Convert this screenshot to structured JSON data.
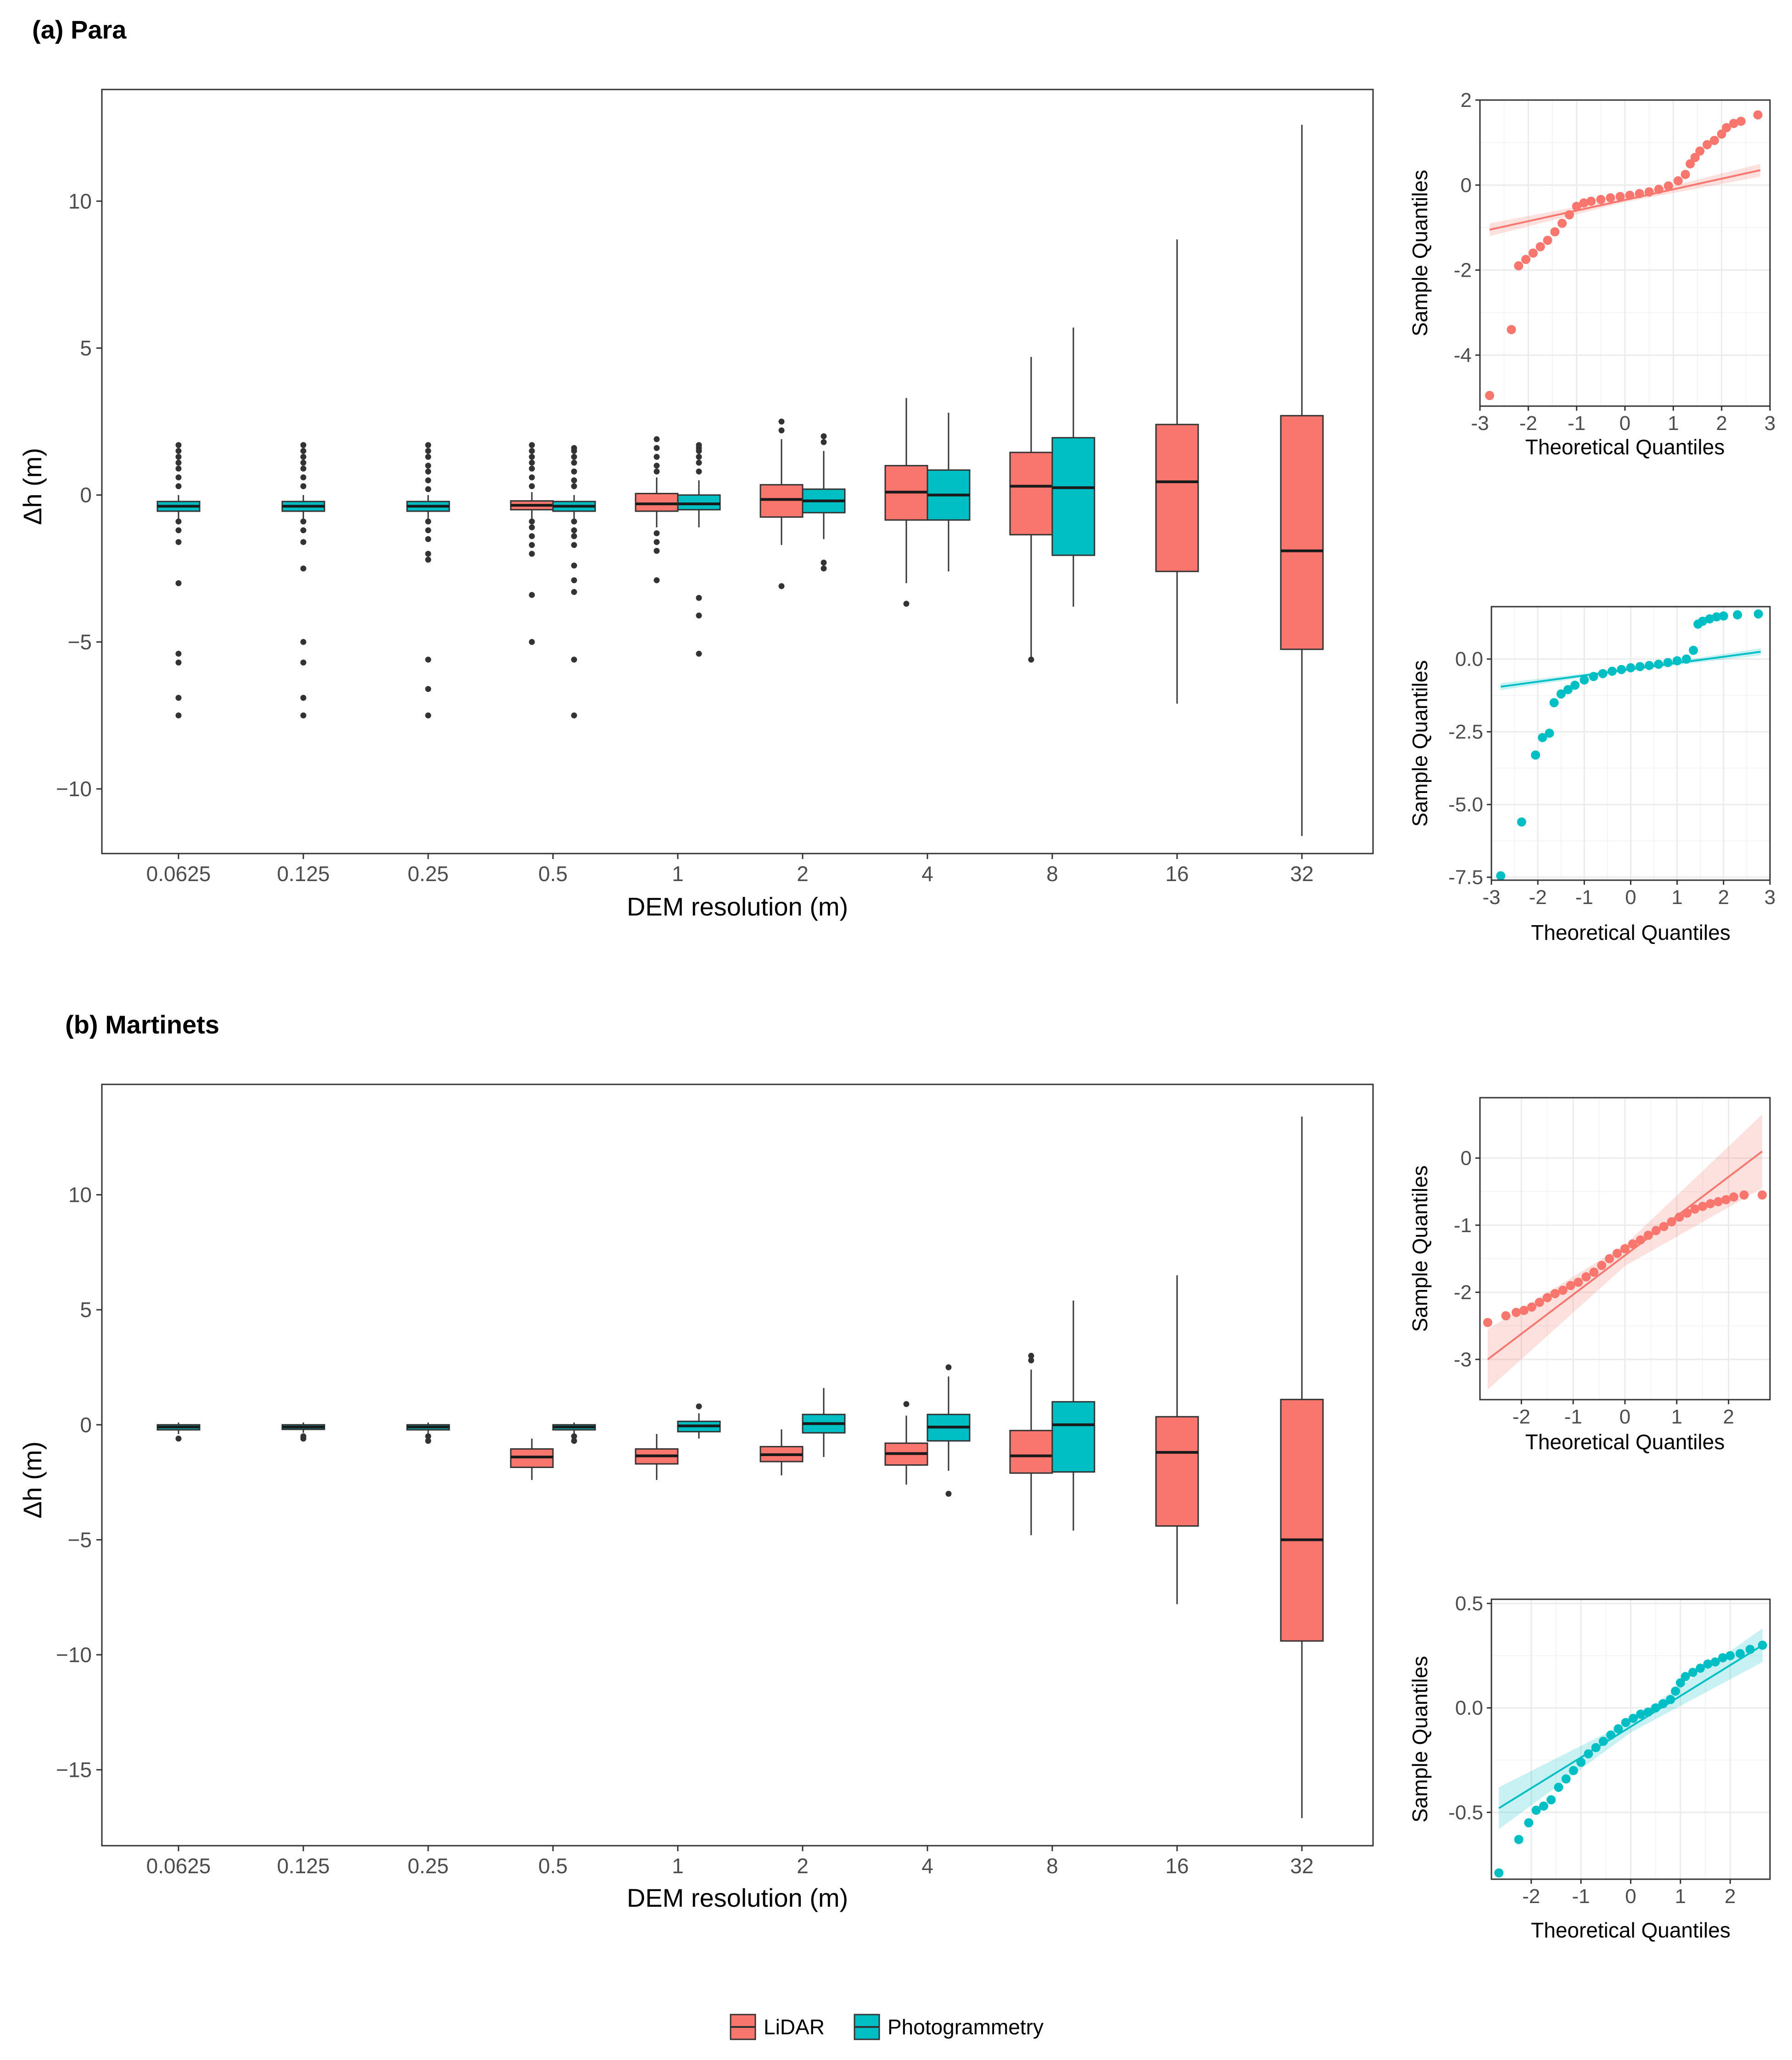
{
  "colors": {
    "lidar": "#F8766D",
    "photogrammetry": "#00BFC4",
    "outlier": "#333333",
    "frame": "#333333",
    "grid": "#ebebeb",
    "grid_minor": "#f4f4f4"
  },
  "legend": {
    "items": [
      {
        "label": "LiDAR",
        "color": "#F8766D"
      },
      {
        "label": "Photogrammetry",
        "color": "#00BFC4"
      }
    ]
  },
  "chart_data": [
    {
      "type": "box",
      "id": "a",
      "title": "(a)  Para",
      "xlabel": "DEM resolution (m)",
      "ylabel": "Δh (m)",
      "ylim": [
        -12.2,
        13.8
      ],
      "yticks": [
        -10,
        -5,
        0,
        5,
        10
      ],
      "yticklabels": [
        "−10",
        "−5",
        "0",
        "5",
        "10"
      ],
      "categories": [
        "0.0625",
        "0.125",
        "0.25",
        "0.5",
        "1",
        "2",
        "4",
        "8",
        "16",
        "32"
      ],
      "series": [
        {
          "name": "LiDAR",
          "boxes": [
            null,
            null,
            null,
            {
              "category": "0.5",
              "q1": -0.5,
              "median": -0.35,
              "q3": -0.2,
              "whisker_low": -0.8,
              "whisker_high": 0.1,
              "outliers": [
                1.7,
                1.5,
                1.3,
                1.1,
                0.9,
                0.6,
                0.3,
                -0.9,
                -1.1,
                -1.4,
                -1.7,
                -2.0,
                -3.4,
                -5.0
              ]
            },
            {
              "category": "1",
              "q1": -0.55,
              "median": -0.3,
              "q3": 0.05,
              "whisker_low": -1.1,
              "whisker_high": 0.6,
              "outliers": [
                1.9,
                1.6,
                1.3,
                1.0,
                0.8,
                -1.3,
                -1.6,
                -1.9,
                -2.9
              ]
            },
            {
              "category": "2",
              "q1": -0.75,
              "median": -0.15,
              "q3": 0.35,
              "whisker_low": -1.7,
              "whisker_high": 1.9,
              "outliers": [
                2.5,
                2.2,
                -3.1
              ]
            },
            {
              "category": "4",
              "q1": -0.85,
              "median": 0.1,
              "q3": 1.0,
              "whisker_low": -3.0,
              "whisker_high": 3.3,
              "outliers": [
                -3.7
              ]
            },
            {
              "category": "8",
              "q1": -1.35,
              "median": 0.3,
              "q3": 1.45,
              "whisker_low": -5.5,
              "whisker_high": 4.7,
              "outliers": [
                -5.6
              ]
            },
            {
              "category": "16",
              "q1": -2.6,
              "median": 0.45,
              "q3": 2.4,
              "whisker_low": -7.1,
              "whisker_high": 8.7,
              "outliers": []
            },
            {
              "category": "32",
              "q1": -5.25,
              "median": -1.9,
              "q3": 2.7,
              "whisker_low": -11.6,
              "whisker_high": 12.6,
              "outliers": []
            }
          ]
        },
        {
          "name": "Photogrammetry",
          "boxes": [
            {
              "category": "0.0625",
              "q1": -0.55,
              "median": -0.38,
              "q3": -0.22,
              "whisker_low": -0.8,
              "whisker_high": 0.0,
              "outliers": [
                1.7,
                1.5,
                1.3,
                1.1,
                0.9,
                0.6,
                0.3,
                -0.9,
                -1.2,
                -1.6,
                -3.0,
                -5.4,
                -5.7,
                -6.9,
                -7.5
              ]
            },
            {
              "category": "0.125",
              "q1": -0.55,
              "median": -0.38,
              "q3": -0.22,
              "whisker_low": -0.8,
              "whisker_high": 0.0,
              "outliers": [
                1.7,
                1.5,
                1.3,
                1.1,
                0.9,
                0.6,
                0.3,
                -0.9,
                -1.2,
                -1.6,
                -2.5,
                -5.0,
                -5.7,
                -6.9,
                -7.5
              ]
            },
            {
              "category": "0.25",
              "q1": -0.55,
              "median": -0.38,
              "q3": -0.22,
              "whisker_low": -0.8,
              "whisker_high": 0.0,
              "outliers": [
                1.7,
                1.5,
                1.3,
                1.0,
                0.8,
                0.5,
                0.2,
                -0.9,
                -1.2,
                -1.5,
                -2.0,
                -2.2,
                -5.6,
                -6.6,
                -7.5
              ]
            },
            {
              "category": "0.5",
              "q1": -0.55,
              "median": -0.38,
              "q3": -0.22,
              "whisker_low": -0.8,
              "whisker_high": 0.0,
              "outliers": [
                1.6,
                1.5,
                1.3,
                1.1,
                0.8,
                0.5,
                0.3,
                -0.9,
                -1.2,
                -1.4,
                -1.7,
                -2.4,
                -2.9,
                -3.3,
                -5.6,
                -7.5
              ]
            },
            {
              "category": "1",
              "q1": -0.5,
              "median": -0.3,
              "q3": 0.0,
              "whisker_low": -1.1,
              "whisker_high": 0.5,
              "outliers": [
                1.7,
                1.6,
                1.5,
                1.3,
                1.1,
                0.8,
                -3.5,
                -4.1,
                -5.4
              ]
            },
            {
              "category": "2",
              "q1": -0.6,
              "median": -0.2,
              "q3": 0.2,
              "whisker_low": -1.5,
              "whisker_high": 1.5,
              "outliers": [
                2.0,
                1.8,
                -2.3,
                -2.5
              ]
            },
            {
              "category": "4",
              "q1": -0.85,
              "median": 0.0,
              "q3": 0.85,
              "whisker_low": -2.6,
              "whisker_high": 2.8,
              "outliers": []
            },
            {
              "category": "8",
              "q1": -2.05,
              "median": 0.25,
              "q3": 1.95,
              "whisker_low": -3.8,
              "whisker_high": 5.7,
              "outliers": []
            },
            null,
            null
          ]
        }
      ]
    },
    {
      "type": "box",
      "id": "b",
      "title": "(b)  Martinets",
      "xlabel": "DEM resolution (m)",
      "ylabel": "Δh (m)",
      "ylim": [
        -18.3,
        14.8
      ],
      "yticks": [
        -15,
        -10,
        -5,
        0,
        5,
        10
      ],
      "yticklabels": [
        "−15",
        "−10",
        "−5",
        "0",
        "5",
        "10"
      ],
      "categories": [
        "0.0625",
        "0.125",
        "0.25",
        "0.5",
        "1",
        "2",
        "4",
        "8",
        "16",
        "32"
      ],
      "series": [
        {
          "name": "LiDAR",
          "boxes": [
            null,
            null,
            null,
            {
              "category": "0.5",
              "q1": -1.85,
              "median": -1.4,
              "q3": -1.05,
              "whisker_low": -2.4,
              "whisker_high": -0.6,
              "outliers": []
            },
            {
              "category": "1",
              "q1": -1.7,
              "median": -1.35,
              "q3": -1.05,
              "whisker_low": -2.4,
              "whisker_high": -0.4,
              "outliers": []
            },
            {
              "category": "2",
              "q1": -1.6,
              "median": -1.3,
              "q3": -0.95,
              "whisker_low": -2.2,
              "whisker_high": -0.2,
              "outliers": []
            },
            {
              "category": "4",
              "q1": -1.75,
              "median": -1.25,
              "q3": -0.8,
              "whisker_low": -2.6,
              "whisker_high": 0.4,
              "outliers": [
                0.9
              ]
            },
            {
              "category": "8",
              "q1": -2.1,
              "median": -1.35,
              "q3": -0.25,
              "whisker_low": -4.8,
              "whisker_high": 2.4,
              "outliers": [
                3.0,
                2.8
              ]
            },
            {
              "category": "16",
              "q1": -4.4,
              "median": -1.2,
              "q3": 0.35,
              "whisker_low": -7.8,
              "whisker_high": 6.5,
              "outliers": []
            },
            {
              "category": "32",
              "q1": -9.4,
              "median": -5.0,
              "q3": 1.1,
              "whisker_low": -17.1,
              "whisker_high": 13.4,
              "outliers": []
            }
          ]
        },
        {
          "name": "Photogrammetry",
          "boxes": [
            {
              "category": "0.0625",
              "q1": -0.22,
              "median": -0.1,
              "q3": 0.0,
              "whisker_low": -0.4,
              "whisker_high": 0.1,
              "outliers": [
                -0.6
              ]
            },
            {
              "category": "0.125",
              "q1": -0.2,
              "median": -0.1,
              "q3": 0.0,
              "whisker_low": -0.35,
              "whisker_high": 0.1,
              "outliers": [
                -0.5,
                -0.6
              ]
            },
            {
              "category": "0.25",
              "q1": -0.22,
              "median": -0.1,
              "q3": 0.0,
              "whisker_low": -0.4,
              "whisker_high": 0.1,
              "outliers": [
                -0.5,
                -0.7
              ]
            },
            {
              "category": "0.5",
              "q1": -0.22,
              "median": -0.1,
              "q3": 0.0,
              "whisker_low": -0.4,
              "whisker_high": 0.1,
              "outliers": [
                -0.5,
                -0.7
              ]
            },
            {
              "category": "1",
              "q1": -0.3,
              "median": -0.05,
              "q3": 0.15,
              "whisker_low": -0.6,
              "whisker_high": 0.5,
              "outliers": [
                0.8
              ]
            },
            {
              "category": "2",
              "q1": -0.35,
              "median": 0.05,
              "q3": 0.45,
              "whisker_low": -1.4,
              "whisker_high": 1.6,
              "outliers": []
            },
            {
              "category": "4",
              "q1": -0.7,
              "median": -0.1,
              "q3": 0.45,
              "whisker_low": -2.0,
              "whisker_high": 2.1,
              "outliers": [
                2.5,
                -3.0
              ]
            },
            {
              "category": "8",
              "q1": -2.05,
              "median": 0.0,
              "q3": 1.0,
              "whisker_low": -4.6,
              "whisker_high": 5.4,
              "outliers": []
            },
            null,
            null
          ]
        }
      ]
    },
    {
      "type": "qq",
      "id": "a-lidar",
      "series": "LiDAR",
      "xlabel": "Theoretical Quantiles",
      "ylabel": "Sample Quantiles",
      "xlim": [
        -3,
        3
      ],
      "ylim": [
        -5.2,
        2.0
      ],
      "xticks": [
        -3,
        -2,
        -1,
        0,
        1,
        2,
        3
      ],
      "xticklabels": [
        "-3",
        "-2",
        "-1",
        "0",
        "1",
        "2",
        "3"
      ],
      "yticks": [
        -4,
        -2,
        0,
        2
      ],
      "yticklabels": [
        "-4",
        "-2",
        "0",
        "2"
      ],
      "line": {
        "x": [
          -2.8,
          2.8
        ],
        "y": [
          -1.05,
          0.35
        ],
        "band": [
          0.15,
          0.15
        ]
      },
      "points": {
        "x": [
          -2.8,
          -2.35,
          -2.2,
          -2.05,
          -1.9,
          -1.75,
          -1.6,
          -1.45,
          -1.3,
          -1.15,
          -1.0,
          -0.85,
          -0.7,
          -0.5,
          -0.3,
          -0.1,
          0.1,
          0.3,
          0.5,
          0.7,
          0.9,
          1.1,
          1.25,
          1.35,
          1.45,
          1.55,
          1.7,
          1.85,
          2.0,
          2.1,
          2.25,
          2.4,
          2.75
        ],
        "y": [
          -4.95,
          -3.4,
          -1.9,
          -1.75,
          -1.6,
          -1.45,
          -1.3,
          -1.1,
          -0.9,
          -0.7,
          -0.5,
          -0.42,
          -0.38,
          -0.34,
          -0.3,
          -0.27,
          -0.24,
          -0.2,
          -0.16,
          -0.1,
          -0.02,
          0.1,
          0.25,
          0.5,
          0.65,
          0.8,
          0.95,
          1.05,
          1.2,
          1.35,
          1.45,
          1.5,
          1.65
        ]
      }
    },
    {
      "type": "qq",
      "id": "a-photogrammetry",
      "series": "Photogrammetry",
      "xlabel": "Theoretical Quantiles",
      "ylabel": "Sample Quantiles",
      "xlim": [
        -3,
        3
      ],
      "ylim": [
        -7.6,
        1.8
      ],
      "xticks": [
        -3,
        -2,
        -1,
        0,
        1,
        2,
        3
      ],
      "xticklabels": [
        "-3",
        "-2",
        "-1",
        "0",
        "1",
        "2",
        "3"
      ],
      "yticks": [
        -7.5,
        -5.0,
        -2.5,
        0.0
      ],
      "yticklabels": [
        "-7.5",
        "-5.0",
        "-2.5",
        "0.0"
      ],
      "line": {
        "x": [
          -2.8,
          2.8
        ],
        "y": [
          -0.95,
          0.25
        ],
        "band": [
          0.12,
          0.12
        ]
      },
      "points": {
        "x": [
          -2.8,
          -2.35,
          -2.05,
          -1.9,
          -1.75,
          -1.65,
          -1.5,
          -1.35,
          -1.2,
          -1.0,
          -0.8,
          -0.6,
          -0.4,
          -0.2,
          0.0,
          0.2,
          0.4,
          0.6,
          0.8,
          1.0,
          1.2,
          1.35,
          1.45,
          1.55,
          1.7,
          1.85,
          2.0,
          2.3,
          2.75
        ],
        "y": [
          -7.45,
          -5.6,
          -3.3,
          -2.7,
          -2.55,
          -1.5,
          -1.2,
          -1.05,
          -0.9,
          -0.72,
          -0.6,
          -0.5,
          -0.42,
          -0.36,
          -0.3,
          -0.26,
          -0.22,
          -0.18,
          -0.12,
          -0.06,
          0.0,
          0.3,
          1.2,
          1.3,
          1.38,
          1.45,
          1.48,
          1.52,
          1.55
        ]
      }
    },
    {
      "type": "qq",
      "id": "b-lidar",
      "series": "LiDAR",
      "xlabel": "Theoretical Quantiles",
      "ylabel": "Sample Quantiles",
      "xlim": [
        -2.8,
        2.8
      ],
      "ylim": [
        -3.6,
        0.9
      ],
      "xticks": [
        -2,
        -1,
        0,
        1,
        2
      ],
      "xticklabels": [
        "-2",
        "-1",
        "0",
        "1",
        "2"
      ],
      "yticks": [
        -3,
        -2,
        -1,
        0
      ],
      "yticklabels": [
        "-3",
        "-2",
        "-1",
        "0"
      ],
      "line": {
        "x": [
          -2.65,
          2.65
        ],
        "y": [
          -3.0,
          0.1
        ],
        "band": [
          0.45,
          0.55
        ]
      },
      "points": {
        "x": [
          -2.65,
          -2.3,
          -2.1,
          -1.95,
          -1.8,
          -1.65,
          -1.5,
          -1.35,
          -1.2,
          -1.05,
          -0.9,
          -0.75,
          -0.6,
          -0.45,
          -0.3,
          -0.15,
          0.0,
          0.15,
          0.3,
          0.45,
          0.6,
          0.75,
          0.9,
          1.05,
          1.2,
          1.35,
          1.5,
          1.65,
          1.8,
          1.95,
          2.1,
          2.3,
          2.65
        ],
        "y": [
          -2.45,
          -2.35,
          -2.3,
          -2.27,
          -2.22,
          -2.15,
          -2.08,
          -2.02,
          -1.97,
          -1.9,
          -1.85,
          -1.77,
          -1.7,
          -1.6,
          -1.5,
          -1.42,
          -1.35,
          -1.28,
          -1.22,
          -1.15,
          -1.08,
          -1.02,
          -0.95,
          -0.88,
          -0.82,
          -0.76,
          -0.72,
          -0.68,
          -0.65,
          -0.62,
          -0.58,
          -0.55,
          -0.55
        ]
      }
    },
    {
      "type": "qq",
      "id": "b-photogrammetry",
      "series": "Photogrammetry",
      "xlabel": "Theoretical Quantiles",
      "ylabel": "Sample Quantiles",
      "xlim": [
        -2.8,
        2.8
      ],
      "ylim": [
        -0.82,
        0.52
      ],
      "xticks": [
        -2,
        -1,
        0,
        1,
        2
      ],
      "xticklabels": [
        "-2",
        "-1",
        "0",
        "1",
        "2"
      ],
      "yticks": [
        -0.5,
        0.0,
        0.5
      ],
      "yticklabels": [
        "-0.5",
        "0.0",
        "0.5"
      ],
      "line": {
        "x": [
          -2.65,
          2.65
        ],
        "y": [
          -0.48,
          0.3
        ],
        "band": [
          0.1,
          0.08
        ]
      },
      "points": {
        "x": [
          -2.65,
          -2.25,
          -2.05,
          -1.9,
          -1.75,
          -1.6,
          -1.45,
          -1.3,
          -1.15,
          -1.0,
          -0.85,
          -0.7,
          -0.55,
          -0.4,
          -0.25,
          -0.1,
          0.05,
          0.2,
          0.35,
          0.5,
          0.65,
          0.8,
          0.9,
          1.0,
          1.1,
          1.25,
          1.4,
          1.55,
          1.7,
          1.85,
          2.0,
          2.2,
          2.4,
          2.65
        ],
        "y": [
          -0.79,
          -0.63,
          -0.55,
          -0.49,
          -0.47,
          -0.44,
          -0.38,
          -0.34,
          -0.3,
          -0.26,
          -0.22,
          -0.19,
          -0.16,
          -0.13,
          -0.1,
          -0.07,
          -0.05,
          -0.03,
          -0.02,
          0.0,
          0.02,
          0.04,
          0.08,
          0.12,
          0.15,
          0.17,
          0.19,
          0.21,
          0.22,
          0.24,
          0.25,
          0.26,
          0.28,
          0.3
        ]
      }
    }
  ]
}
